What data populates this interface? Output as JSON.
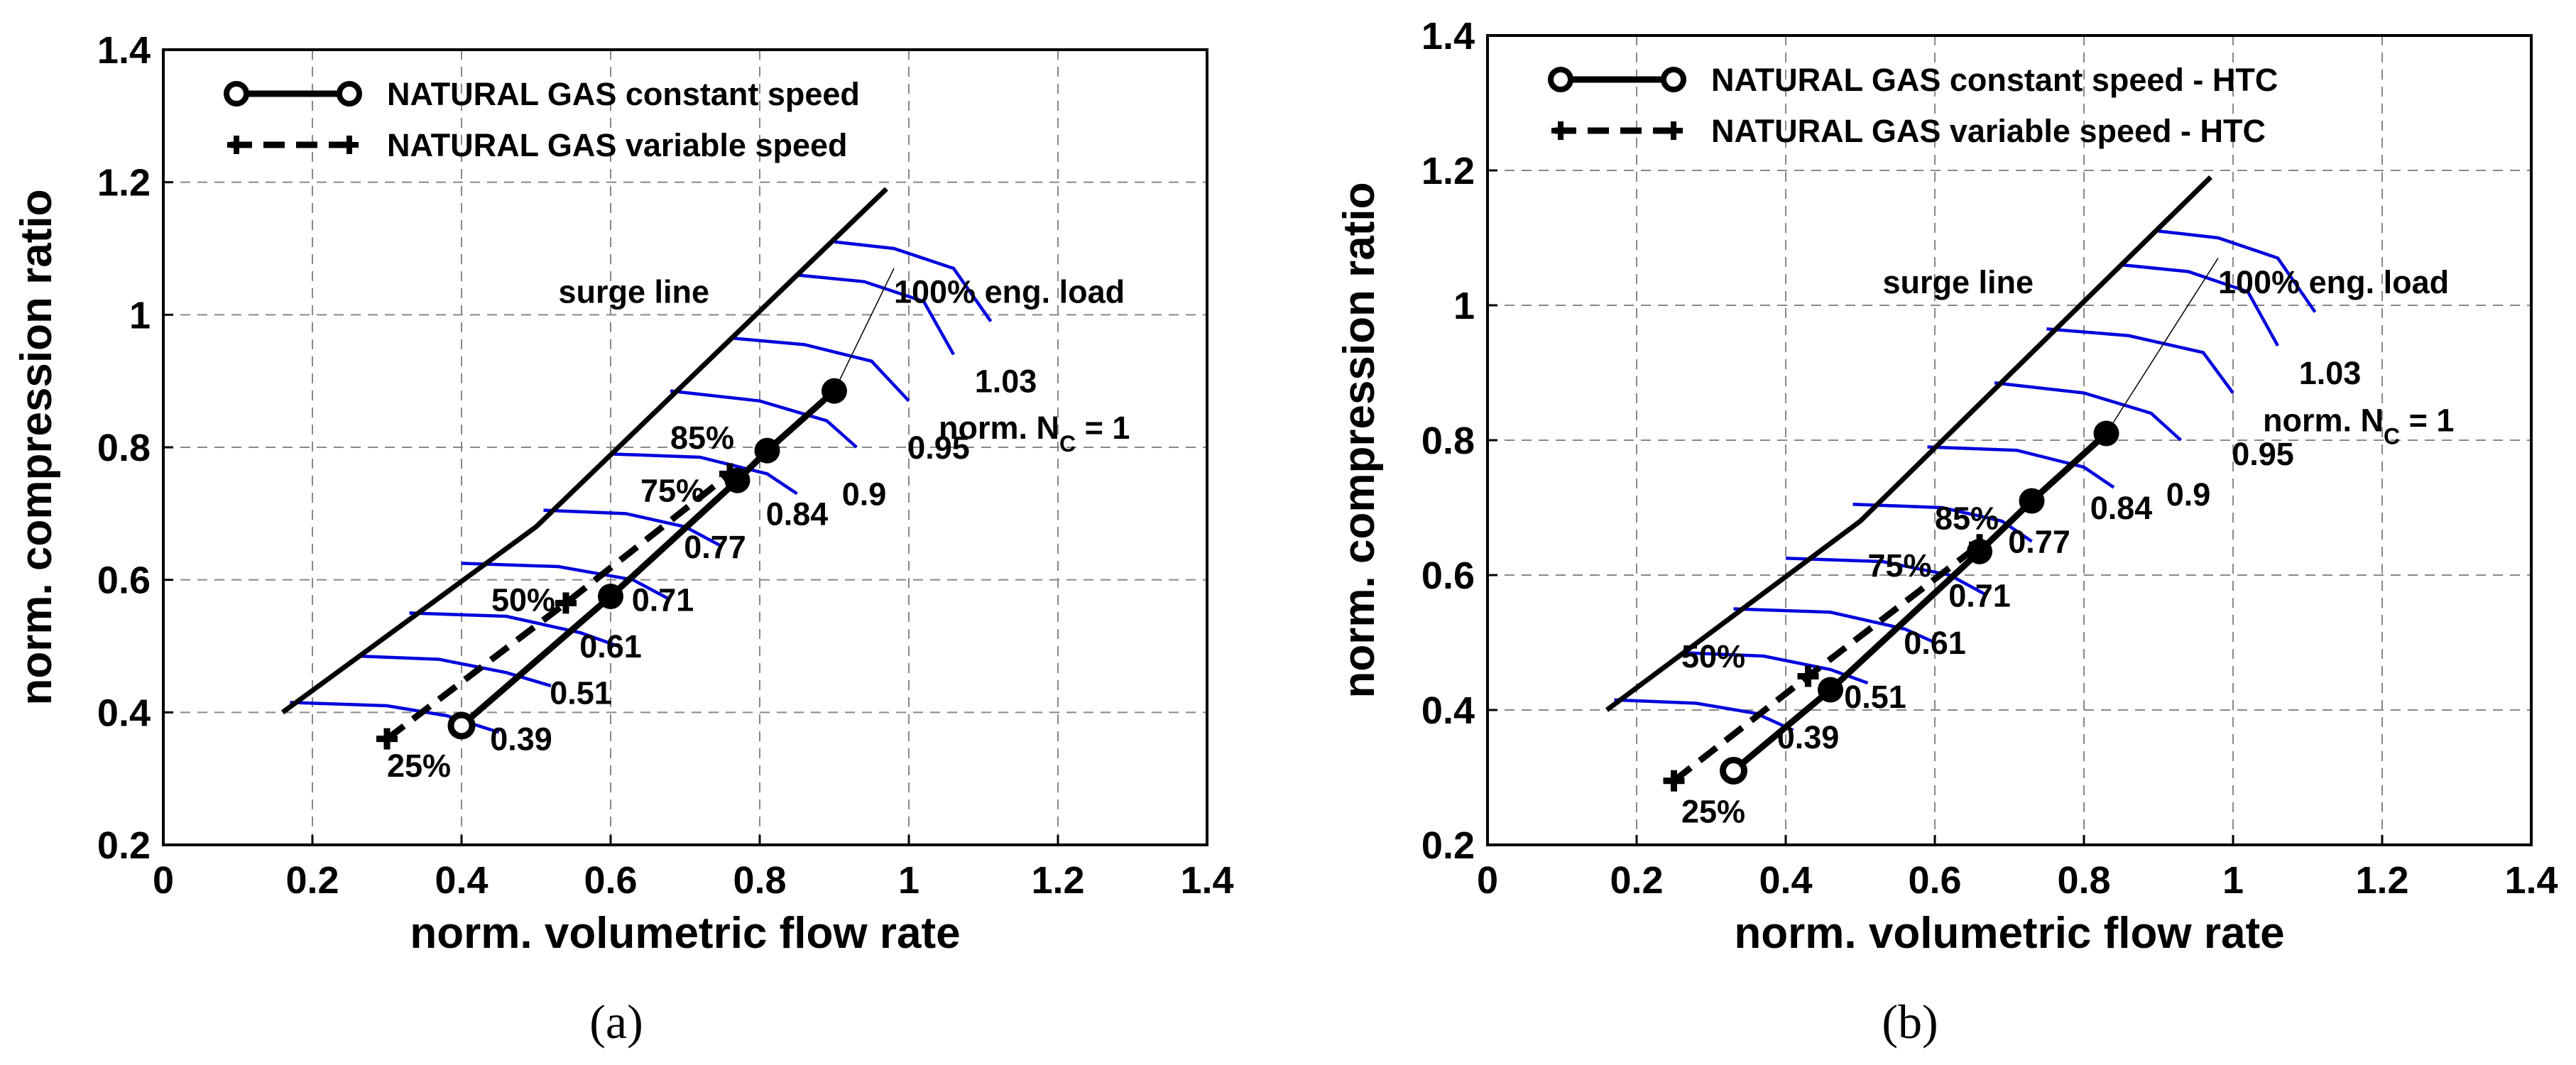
{
  "colors": {
    "speed_curve": "#0000DD",
    "line": "#000000",
    "grid": "#888888"
  },
  "chart_data": [
    {
      "type": "line",
      "sub_label": "(a)",
      "xlabel": "norm. volumetric flow rate",
      "ylabel": "norm. compression ratio",
      "xlim": [
        0,
        1.4
      ],
      "ylim": [
        0.2,
        1.4
      ],
      "xticks": [
        "0",
        "0.2",
        "0.4",
        "0.6",
        "0.8",
        "1",
        "1.2",
        "1.4"
      ],
      "yticks": [
        "0.2",
        "0.4",
        "0.6",
        "0.8",
        "1",
        "1.2",
        "1.4"
      ],
      "grid": true,
      "legend_position": "top-left",
      "series": [
        {
          "name": "NATURAL GAS constant speed",
          "style": "solid-circle",
          "x": [
            0.4,
            0.6,
            0.77,
            0.81,
            0.9
          ],
          "y": [
            0.38,
            0.575,
            0.75,
            0.795,
            0.885
          ],
          "marker_points": [
            [
              0.6,
              0.575
            ],
            [
              0.77,
              0.75
            ],
            [
              0.81,
              0.795
            ],
            [
              0.9,
              0.885
            ]
          ],
          "hollow_points": [
            [
              0.4,
              0.38
            ]
          ]
        },
        {
          "name": "NATURAL GAS variable speed",
          "style": "dashed-plus",
          "x": [
            0.3,
            0.54,
            0.76
          ],
          "y": [
            0.36,
            0.565,
            0.76
          ],
          "marker_points": [
            [
              0.3,
              0.36
            ],
            [
              0.54,
              0.565
            ],
            [
              0.76,
              0.76
            ]
          ]
        }
      ],
      "surge_line": {
        "label": "surge line",
        "x": [
          0.16,
          0.5,
          0.97
        ],
        "y": [
          0.4,
          0.68,
          1.19
        ]
      },
      "speed_lines": [
        {
          "label": "0.39",
          "label_xy": [
            0.48,
            0.36
          ],
          "x": [
            0.17,
            0.3,
            0.38,
            0.45
          ],
          "y": [
            0.415,
            0.41,
            0.395,
            0.37
          ]
        },
        {
          "label": "0.51",
          "label_xy": [
            0.56,
            0.43
          ],
          "x": [
            0.26,
            0.37,
            0.46,
            0.52
          ],
          "y": [
            0.485,
            0.48,
            0.46,
            0.44
          ]
        },
        {
          "label": "0.61",
          "label_xy": [
            0.6,
            0.5
          ],
          "x": [
            0.33,
            0.46,
            0.56,
            0.61
          ],
          "y": [
            0.55,
            0.545,
            0.52,
            0.5
          ]
        },
        {
          "label": "0.71",
          "label_xy": [
            0.67,
            0.57
          ],
          "x": [
            0.4,
            0.53,
            0.63,
            0.68
          ],
          "y": [
            0.625,
            0.62,
            0.6,
            0.57
          ]
        },
        {
          "label": "0.77",
          "label_xy": [
            0.74,
            0.65
          ],
          "x": [
            0.51,
            0.62,
            0.7,
            0.75
          ],
          "y": [
            0.705,
            0.7,
            0.68,
            0.65
          ]
        },
        {
          "label": "0.84",
          "label_xy": [
            0.85,
            0.7
          ],
          "x": [
            0.6,
            0.72,
            0.81,
            0.85
          ],
          "y": [
            0.79,
            0.785,
            0.76,
            0.73
          ]
        },
        {
          "label": "0.9",
          "label_xy": [
            0.94,
            0.73
          ],
          "x": [
            0.68,
            0.8,
            0.89,
            0.93
          ],
          "y": [
            0.885,
            0.87,
            0.84,
            0.8
          ]
        },
        {
          "label": "0.95",
          "label_xy": [
            1.04,
            0.8
          ],
          "x": [
            0.76,
            0.86,
            0.95,
            1.0
          ],
          "y": [
            0.965,
            0.955,
            0.93,
            0.87
          ]
        },
        {
          "label": "1.03",
          "label_xy": [
            1.13,
            0.9
          ],
          "x": [
            0.85,
            0.94,
            1.02,
            1.06
          ],
          "y": [
            1.06,
            1.05,
            1.02,
            0.94
          ]
        },
        {
          "label": "",
          "x": [
            0.9,
            0.98,
            1.06,
            1.11
          ],
          "y": [
            1.11,
            1.1,
            1.07,
            0.99
          ]
        }
      ],
      "load_labels": [
        {
          "text": "25%",
          "x": 0.3,
          "y": 0.32
        },
        {
          "text": "50%",
          "x": 0.44,
          "y": 0.57
        },
        {
          "text": "75%",
          "x": 0.64,
          "y": 0.735
        },
        {
          "text": "85%",
          "x": 0.68,
          "y": 0.815
        },
        {
          "text": "100% eng. load",
          "x": 0.98,
          "y": 1.035
        }
      ],
      "annotations": [
        {
          "text": "surge line",
          "x": 0.53,
          "y": 1.035
        },
        {
          "text": "norm. N",
          "sub": "C",
          "tail": " = 1",
          "x": 1.04,
          "y": 0.83
        }
      ],
      "leader_lines": [
        {
          "x": [
            0.9,
            0.98
          ],
          "y": [
            0.885,
            1.07
          ]
        }
      ]
    },
    {
      "type": "line",
      "sub_label": "(b)",
      "xlabel": "norm. volumetric flow rate",
      "ylabel": "norm. compression ratio",
      "xlim": [
        0,
        1.4
      ],
      "ylim": [
        0.2,
        1.4
      ],
      "xticks": [
        "0",
        "0.2",
        "0.4",
        "0.6",
        "0.8",
        "1",
        "1.2",
        "1.4"
      ],
      "yticks": [
        "0.2",
        "0.4",
        "0.6",
        "0.8",
        "1",
        "1.2",
        "1.4"
      ],
      "grid": true,
      "legend_position": "top-left",
      "series": [
        {
          "name": "NATURAL GAS constant speed - HTC",
          "style": "solid-circle",
          "x": [
            0.33,
            0.46,
            0.66,
            0.73,
            0.83
          ],
          "y": [
            0.31,
            0.43,
            0.635,
            0.71,
            0.81
          ],
          "marker_points": [
            [
              0.46,
              0.43
            ],
            [
              0.66,
              0.635
            ],
            [
              0.73,
              0.71
            ],
            [
              0.83,
              0.81
            ]
          ],
          "hollow_points": [
            [
              0.33,
              0.31
            ]
          ]
        },
        {
          "name": "NATURAL GAS variable speed - HTC",
          "style": "dashed-plus",
          "x": [
            0.25,
            0.43,
            0.66
          ],
          "y": [
            0.295,
            0.45,
            0.645
          ],
          "marker_points": [
            [
              0.25,
              0.295
            ],
            [
              0.43,
              0.45
            ],
            [
              0.66,
              0.645
            ]
          ]
        }
      ],
      "surge_line": {
        "label": "surge line",
        "x": [
          0.16,
          0.5,
          0.97
        ],
        "y": [
          0.4,
          0.68,
          1.19
        ]
      },
      "speed_lines": [
        {
          "label": "0.39",
          "label_xy": [
            0.43,
            0.36
          ],
          "x": [
            0.17,
            0.28,
            0.36,
            0.41
          ],
          "y": [
            0.415,
            0.41,
            0.395,
            0.37
          ]
        },
        {
          "label": "0.51",
          "label_xy": [
            0.52,
            0.42
          ],
          "x": [
            0.26,
            0.37,
            0.46,
            0.51
          ],
          "y": [
            0.485,
            0.48,
            0.46,
            0.44
          ]
        },
        {
          "label": "0.61",
          "label_xy": [
            0.6,
            0.5
          ],
          "x": [
            0.33,
            0.46,
            0.56,
            0.6
          ],
          "y": [
            0.55,
            0.545,
            0.52,
            0.5
          ]
        },
        {
          "label": "0.71",
          "label_xy": [
            0.66,
            0.57
          ],
          "x": [
            0.4,
            0.53,
            0.62,
            0.67
          ],
          "y": [
            0.625,
            0.62,
            0.6,
            0.57
          ]
        },
        {
          "label": "0.77",
          "label_xy": [
            0.74,
            0.65
          ],
          "x": [
            0.49,
            0.61,
            0.69,
            0.73
          ],
          "y": [
            0.705,
            0.7,
            0.68,
            0.65
          ]
        },
        {
          "label": "0.84",
          "label_xy": [
            0.85,
            0.7
          ],
          "x": [
            0.59,
            0.71,
            0.8,
            0.84
          ],
          "y": [
            0.79,
            0.785,
            0.76,
            0.73
          ]
        },
        {
          "label": "0.9",
          "label_xy": [
            0.94,
            0.72
          ],
          "x": [
            0.68,
            0.8,
            0.89,
            0.93
          ],
          "y": [
            0.885,
            0.87,
            0.84,
            0.8
          ]
        },
        {
          "label": "0.95",
          "label_xy": [
            1.04,
            0.78
          ],
          "x": [
            0.75,
            0.86,
            0.96,
            1.0
          ],
          "y": [
            0.965,
            0.955,
            0.93,
            0.87
          ]
        },
        {
          "label": "1.03",
          "label_xy": [
            1.13,
            0.9
          ],
          "x": [
            0.85,
            0.94,
            1.02,
            1.06
          ],
          "y": [
            1.06,
            1.05,
            1.02,
            0.94
          ]
        },
        {
          "label": "",
          "x": [
            0.9,
            0.98,
            1.06,
            1.11
          ],
          "y": [
            1.11,
            1.1,
            1.07,
            0.99
          ]
        }
      ],
      "load_labels": [
        {
          "text": "25%",
          "x": 0.26,
          "y": 0.25
        },
        {
          "text": "50%",
          "x": 0.26,
          "y": 0.48
        },
        {
          "text": "75%",
          "x": 0.51,
          "y": 0.615
        },
        {
          "text": "85%",
          "x": 0.6,
          "y": 0.685
        },
        {
          "text": "100% eng. load",
          "x": 0.98,
          "y": 1.035
        }
      ],
      "annotations": [
        {
          "text": "surge line",
          "x": 0.53,
          "y": 1.035
        },
        {
          "text": "norm. N",
          "sub": "C",
          "tail": " = 1",
          "x": 1.04,
          "y": 0.83
        }
      ],
      "leader_lines": [
        {
          "x": [
            0.83,
            0.98
          ],
          "y": [
            0.81,
            1.07
          ]
        }
      ]
    }
  ]
}
